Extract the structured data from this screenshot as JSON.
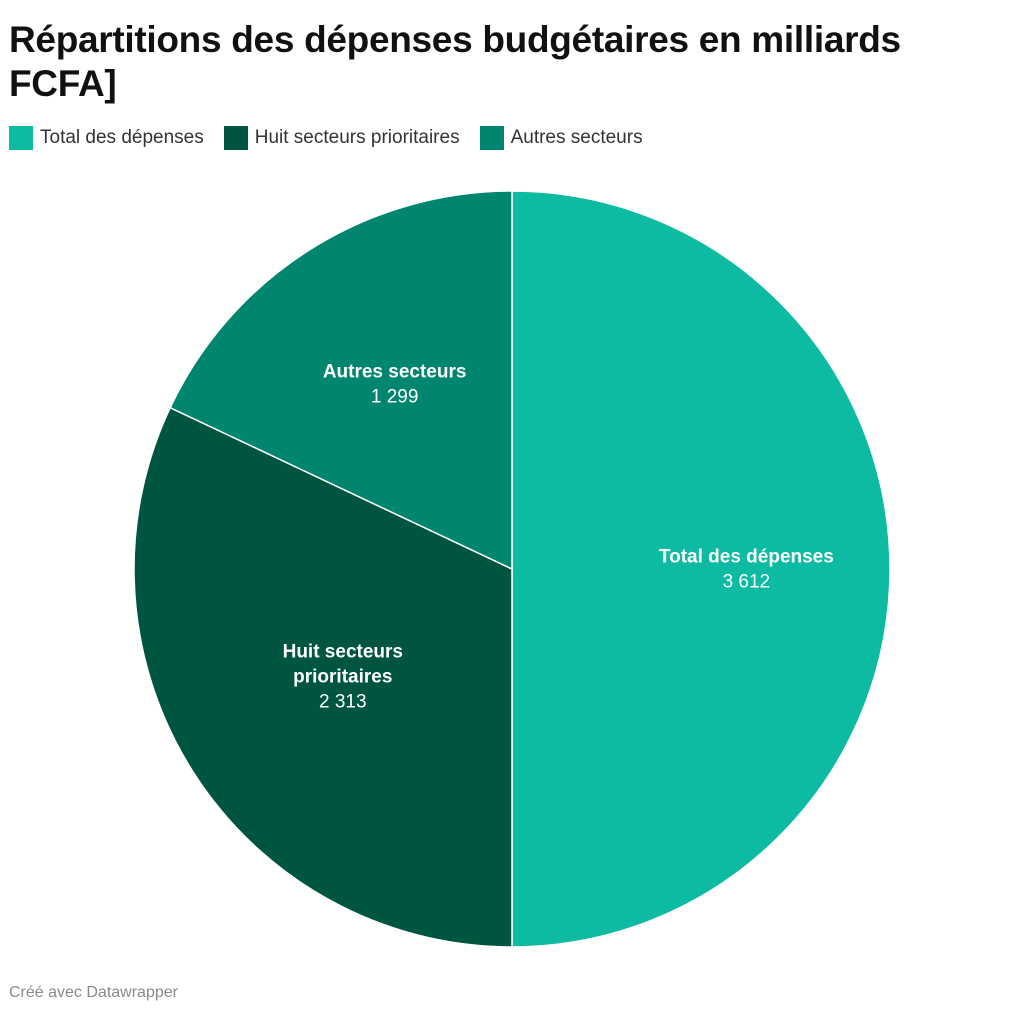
{
  "header": {
    "title": "Répartitions des dépenses budgétaires en milliards FCFA]"
  },
  "footer": {
    "credit": "Créé avec Datawrapper"
  },
  "chart_data": {
    "type": "pie",
    "title": "Répartitions des dépenses budgétaires en milliards FCFA]",
    "legend_position": "top-left",
    "slices": [
      {
        "label": "Total des dépenses",
        "value": 3612,
        "value_label": "3 612",
        "color": "#0cbba1"
      },
      {
        "label": "Huit secteurs prioritaires",
        "value": 2313,
        "value_label": "2 313",
        "color": "#005541"
      },
      {
        "label": "Autres secteurs",
        "value": 1299,
        "value_label": "1 299",
        "color": "#00856f"
      }
    ]
  }
}
